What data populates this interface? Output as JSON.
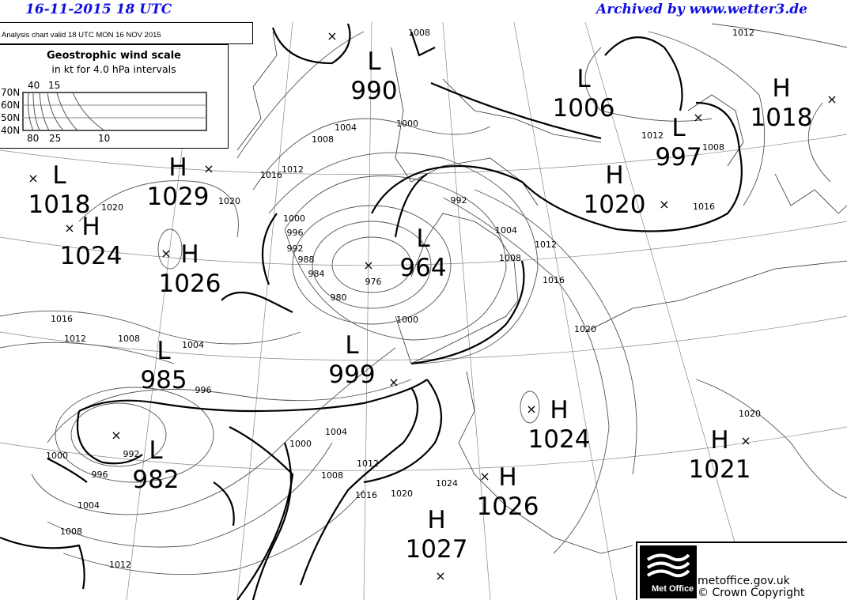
{
  "header": {
    "datetime": "16-11-2015  18 UTC",
    "archive": "Archived by www.wetter3.de",
    "accent_color": "#1010e0"
  },
  "chart_info": {
    "valid_text": "Analysis chart  valid 18 UTC MON 16  NOV 2015"
  },
  "wind_scale": {
    "title": "Geostrophic wind scale",
    "subtitle": "in kt for 4.0 hPa intervals",
    "latitudes": [
      "70N",
      "60N",
      "50N",
      "40N"
    ],
    "top_labels": [
      "40",
      "15"
    ],
    "bottom_labels": [
      "80",
      "25",
      "10"
    ]
  },
  "pressure_centers": [
    {
      "type": "L",
      "value": "990"
    },
    {
      "type": "L",
      "value": "1006"
    },
    {
      "type": "H",
      "value": "1018"
    },
    {
      "type": "L",
      "value": "997"
    },
    {
      "type": "H",
      "value": "1020"
    },
    {
      "type": "L",
      "value": "1018"
    },
    {
      "type": "H",
      "value": "1029"
    },
    {
      "type": "H",
      "value": "1024"
    },
    {
      "type": "H",
      "value": "1026"
    },
    {
      "type": "L",
      "value": "964"
    },
    {
      "type": "L",
      "value": "985"
    },
    {
      "type": "L",
      "value": "999"
    },
    {
      "type": "L",
      "value": "982"
    },
    {
      "type": "H",
      "value": "1024"
    },
    {
      "type": "H",
      "value": "1021"
    },
    {
      "type": "H",
      "value": "1026"
    },
    {
      "type": "H",
      "value": "1027"
    }
  ],
  "isobar_labels": [
    "1008",
    "1012",
    "1000",
    "1004",
    "1008",
    "1012",
    "1016",
    "1020",
    "1020",
    "1012",
    "1008",
    "1016",
    "1000",
    "996",
    "992",
    "988",
    "984",
    "980",
    "976",
    "992",
    "1004",
    "1008",
    "1012",
    "1016",
    "1020",
    "1016",
    "1012",
    "1008",
    "1004",
    "996",
    "1000",
    "1000",
    "1004",
    "1008",
    "1012",
    "1016",
    "1020",
    "1024",
    "1000",
    "992",
    "996",
    "1004",
    "1008",
    "1012",
    "1020"
  ],
  "footer": {
    "logo_text": "Met Office",
    "url": "metoffice.gov.uk",
    "copyright": "© Crown Copyright"
  }
}
